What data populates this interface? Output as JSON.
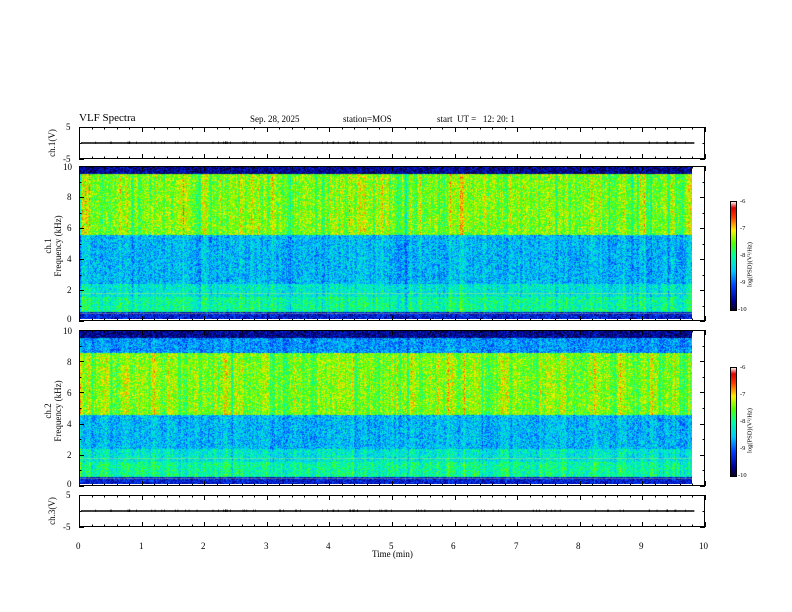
{
  "header": {
    "title": "VLF Spectra",
    "date": "Sep. 28, 2025",
    "station": "station=MOS",
    "start": "start  UT =   12: 20: 1"
  },
  "chart_data": [
    {
      "type": "line",
      "name": "ch1-voltage",
      "ylabel": "ch.1(V)",
      "ylim": [
        -5,
        5
      ],
      "y_ticks": [
        "5",
        "-5"
      ],
      "x": [
        0,
        9.83
      ],
      "values": [
        0,
        0
      ]
    },
    {
      "type": "heatmap",
      "name": "ch1-spectrogram",
      "ylabel": "ch.1\nFrequency (kHz)",
      "ylabel_line1": "ch.1",
      "ylabel_line2": "Frequency (kHz)",
      "ylim": [
        0,
        10
      ],
      "y_ticks": [
        "0",
        "2",
        "4",
        "6",
        "8",
        "10"
      ],
      "xlim": [
        0,
        10
      ],
      "data_end_min": 9.83,
      "colorbar": {
        "label": "log(PSD)(V²/Hz)",
        "range": [
          -10,
          -6
        ],
        "ticks": [
          "-6",
          "-7",
          "-8",
          "-9",
          "-10"
        ]
      },
      "band_peak_khz": [
        6,
        9
      ]
    },
    {
      "type": "heatmap",
      "name": "ch2-spectrogram",
      "ylabel": "ch.2\nFrequency (kHz)",
      "ylabel_line1": "ch.2",
      "ylabel_line2": "Frequency (kHz)",
      "ylim": [
        0,
        10
      ],
      "y_ticks": [
        "0",
        "2",
        "4",
        "6",
        "8",
        "10"
      ],
      "xlim": [
        0,
        10
      ],
      "data_end_min": 9.83,
      "colorbar": {
        "label": "log(PSD)(V²/Hz)",
        "range": [
          -10,
          -6
        ],
        "ticks": [
          "-6",
          "-7",
          "-8",
          "-9",
          "-10"
        ]
      },
      "band_peak_khz": [
        5,
        8
      ]
    },
    {
      "type": "line",
      "name": "ch3-voltage",
      "ylabel": "ch.3(V)",
      "ylim": [
        -5,
        5
      ],
      "y_ticks": [
        "5",
        "-5"
      ],
      "x": [
        0,
        9.83
      ],
      "values": [
        0,
        0
      ]
    }
  ],
  "x_axis": {
    "label": "Time (min)",
    "range": [
      0,
      10
    ],
    "ticks": [
      "0",
      "1",
      "2",
      "3",
      "4",
      "5",
      "6",
      "7",
      "8",
      "9",
      "10"
    ]
  }
}
